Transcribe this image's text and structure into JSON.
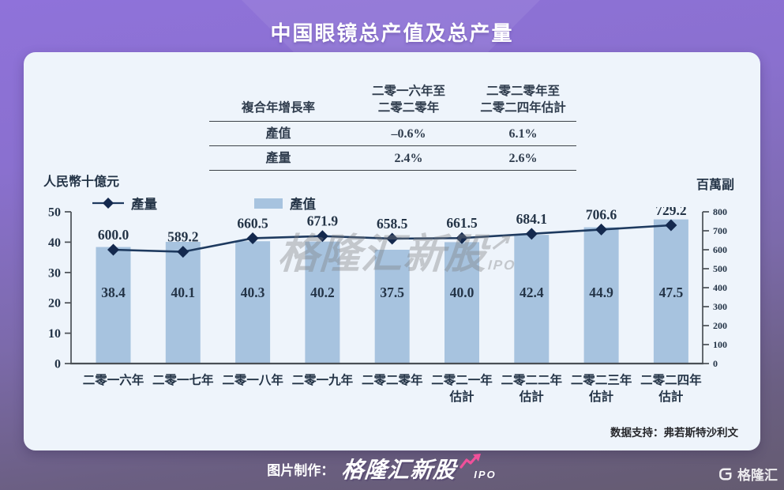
{
  "page": {
    "title": "中国眼镜总产值及总产量",
    "source_note": "数据支持：弗若斯特沙利文",
    "watermark": {
      "text": "格隆汇新股",
      "arrow": "↗",
      "sub": "IPO"
    },
    "footer": {
      "made_by_label": "图片制作：",
      "logo_text": "格隆汇新股",
      "logo_sub": "IPO",
      "corner_logo_text": "格隆汇"
    }
  },
  "cagr_table": {
    "header": [
      "複合年增長率",
      "二零一六年至\n二零二零年",
      "二零二零年至\n二零二四年估計"
    ],
    "rows": [
      {
        "label": "產值",
        "values": [
          "–0.6%",
          "6.1%"
        ]
      },
      {
        "label": "產量",
        "values": [
          "2.4%",
          "2.6%"
        ]
      }
    ]
  },
  "chart_data": {
    "type": "bar",
    "title": "中国眼镜总产值及总产量",
    "categories": [
      [
        "二零一六年"
      ],
      [
        "二零一七年"
      ],
      [
        "二零一八年"
      ],
      [
        "二零一九年"
      ],
      [
        "二零二零年"
      ],
      [
        "二零二一年",
        "估計"
      ],
      [
        "二零二二年",
        "估計"
      ],
      [
        "二零二三年",
        "估計"
      ],
      [
        "二零二四年",
        "估計"
      ]
    ],
    "left_axis": {
      "label": "人民幣十億元",
      "min": 0,
      "max": 50,
      "step": 10
    },
    "right_axis": {
      "label": "百萬副",
      "min": 0,
      "max": 800,
      "step": 100
    },
    "grid": false,
    "legend_position": "top",
    "series": [
      {
        "name": "產值",
        "type": "bar",
        "axis": "left",
        "color": "#a7c3df",
        "values": [
          38.4,
          40.1,
          40.3,
          40.2,
          37.5,
          40.0,
          42.4,
          44.9,
          47.5
        ],
        "labels": [
          "38.4",
          "40.1",
          "40.3",
          "40.2",
          "37.5",
          "40.0",
          "42.4",
          "44.9",
          "47.5"
        ]
      },
      {
        "name": "產量",
        "type": "line",
        "axis": "right",
        "color": "#1e3a5f",
        "values": [
          600.0,
          589.2,
          660.5,
          671.9,
          658.5,
          661.5,
          684.1,
          706.6,
          729.2
        ],
        "labels": [
          "600.0",
          "589.2",
          "660.5",
          "671.9",
          "658.5",
          "661.5",
          "684.1",
          "706.6",
          "729.2"
        ]
      }
    ],
    "colors": {
      "axis": "#4a4f55",
      "text": "#243447",
      "marker": "#14294e"
    }
  }
}
